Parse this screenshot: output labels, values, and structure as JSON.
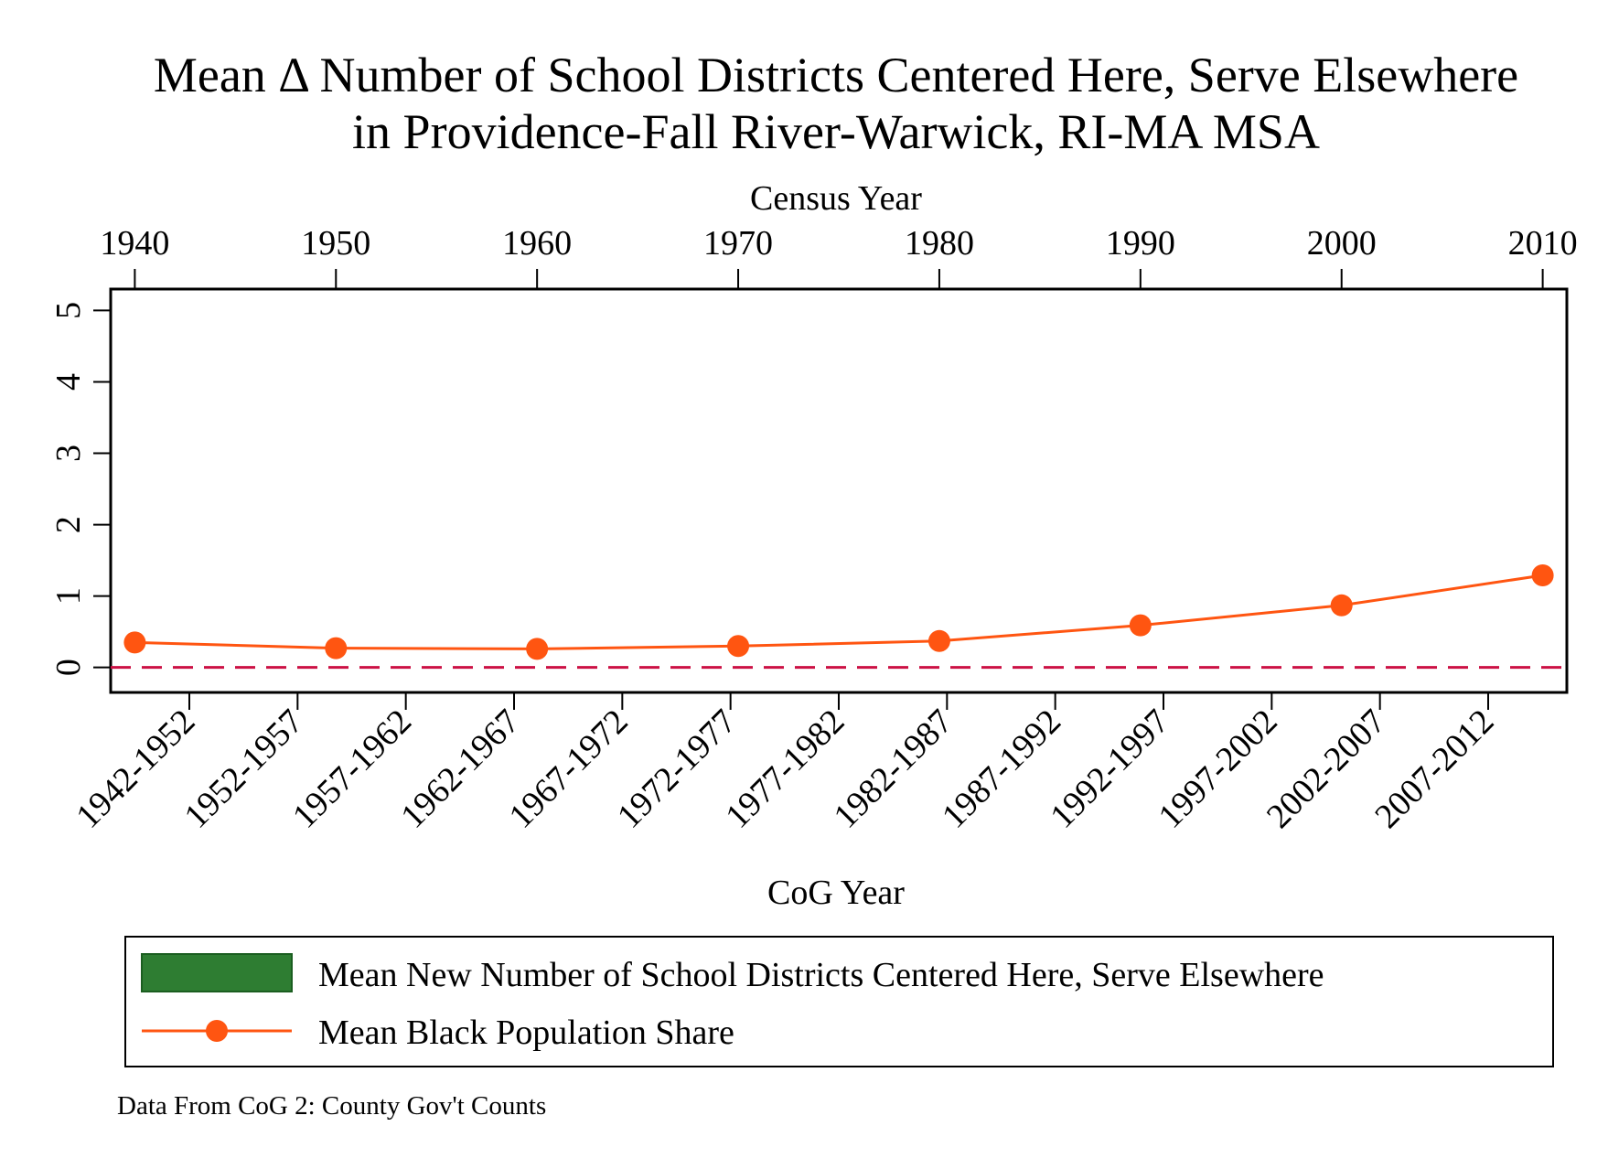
{
  "chart_data": {
    "type": "line",
    "title_line1": "Mean Δ Number of School Districts Centered Here, Serve Elsewhere",
    "title_line2": "in Providence-Fall River-Warwick, RI-MA MSA",
    "top_axis_label": "Census Year",
    "top_axis_ticks": [
      "1940",
      "1950",
      "1960",
      "1970",
      "1980",
      "1990",
      "2000",
      "2010"
    ],
    "xlabel": "CoG Year",
    "bottom_axis_ticks": [
      "1942-1952",
      "1952-1957",
      "1957-1962",
      "1962-1967",
      "1967-1972",
      "1972-1977",
      "1977-1982",
      "1982-1987",
      "1987-1992",
      "1992-1997",
      "1997-2002",
      "2002-2007",
      "2007-2012"
    ],
    "ylabel": "",
    "y_ticks": [
      "0",
      "1",
      "2",
      "3",
      "4",
      "5"
    ],
    "ylim": [
      -0.35,
      5.3
    ],
    "xlim": [
      1938.8,
      2011.2
    ],
    "reference_line": {
      "y": 0,
      "style": "dashed",
      "color": "#cc1144"
    },
    "series": [
      {
        "name": "Mean Black Population Share",
        "color": "#ff5511",
        "marker": "circle",
        "x": [
          1940,
          1950,
          1960,
          1970,
          1980,
          1990,
          2000,
          2010
        ],
        "values": [
          0.35,
          0.27,
          0.26,
          0.3,
          0.37,
          0.59,
          0.87,
          1.29
        ]
      }
    ],
    "bars": {
      "name": "Mean New Number of School Districts Centered Here, Serve Elsewhere",
      "color": "#2e7d32",
      "values": []
    },
    "legend": {
      "placement": "bottom",
      "entries": [
        {
          "label": "Mean New Number of School Districts Centered Here, Serve Elsewhere",
          "kind": "bar-swatch",
          "color": "#2e7d32"
        },
        {
          "label": "Mean Black Population Share",
          "kind": "line-marker",
          "color": "#ff5511"
        }
      ]
    },
    "note": "Data From CoG 2: County Gov't Counts",
    "grid": false
  }
}
